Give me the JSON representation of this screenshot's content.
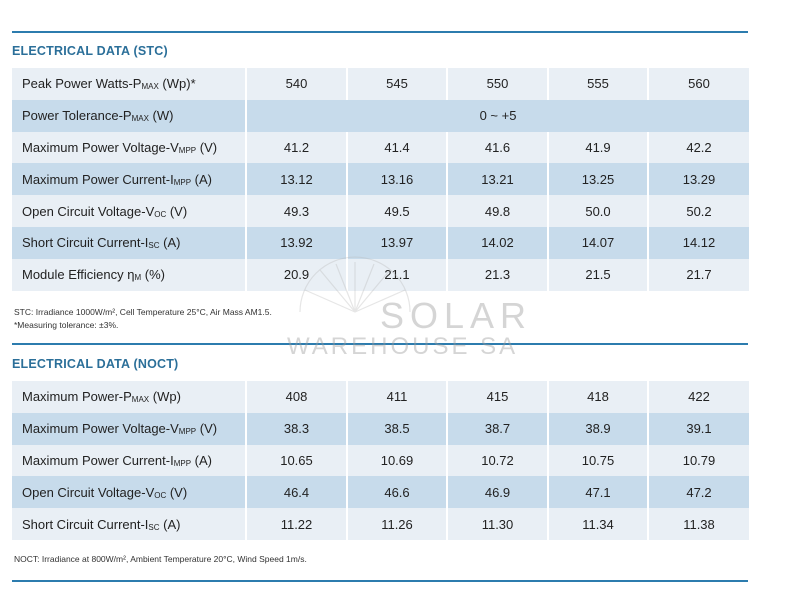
{
  "stc": {
    "title": "ELECTRICAL DATA (STC)",
    "rows": [
      {
        "label": "Peak Power Watts-P",
        "sub": "MAX",
        "unit": " (Wp)*",
        "values": [
          "540",
          "545",
          "550",
          "555",
          "560"
        ]
      },
      {
        "label": "Power Tolerance-P",
        "sub": "MAX",
        "unit": " (W)",
        "merged": "0 ~ +5"
      },
      {
        "label": "Maximum Power Voltage-V",
        "sub": "MPP",
        "unit": " (V)",
        "values": [
          "41.2",
          "41.4",
          "41.6",
          "41.9",
          "42.2"
        ]
      },
      {
        "label": "Maximum Power Current-I",
        "sub": "MPP",
        "unit": " (A)",
        "values": [
          "13.12",
          "13.16",
          "13.21",
          "13.25",
          "13.29"
        ]
      },
      {
        "label": "Open Circuit Voltage-V",
        "sub": "OC",
        "unit": " (V)",
        "values": [
          "49.3",
          "49.5",
          "49.8",
          "50.0",
          "50.2"
        ]
      },
      {
        "label": "Short Circuit Current-I",
        "sub": "SC",
        "unit": " (A)",
        "values": [
          "13.92",
          "13.97",
          "14.02",
          "14.07",
          "14.12"
        ]
      },
      {
        "label": "Module Efficiency  η",
        "sub": "m",
        "unit": " (%)",
        "values": [
          "20.9",
          "21.1",
          "21.3",
          "21.5",
          "21.7"
        ]
      }
    ],
    "note1": "STC: Irradiance 1000W/m², Cell Temperature 25°C, Air Mass AM1.5.",
    "note2": "*Measuring tolerance: ±3%."
  },
  "noct": {
    "title": "ELECTRICAL DATA (NOCT)",
    "rows": [
      {
        "label": "Maximum Power-P",
        "sub": "MAX",
        "unit": " (Wp)",
        "values": [
          "408",
          "411",
          "415",
          "418",
          "422"
        ]
      },
      {
        "label": "Maximum Power Voltage-V",
        "sub": "MPP",
        "unit": " (V)",
        "values": [
          "38.3",
          "38.5",
          "38.7",
          "38.9",
          "39.1"
        ]
      },
      {
        "label": "Maximum Power Current-I",
        "sub": "MPP",
        "unit": " (A)",
        "values": [
          "10.65",
          "10.69",
          "10.72",
          "10.75",
          "10.79"
        ]
      },
      {
        "label": "Open Circuit Voltage-V",
        "sub": "OC",
        "unit": " (V)",
        "values": [
          "46.4",
          "46.6",
          "46.9",
          "47.1",
          "47.2"
        ]
      },
      {
        "label": "Short Circuit Current-I",
        "sub": "SC",
        "unit": " (A)",
        "values": [
          "11.22",
          "11.26",
          "11.30",
          "11.34",
          "11.38"
        ]
      }
    ],
    "note1": "NOCT: Irradiance at 800W/m², Ambient Temperature 20°C, Wind Speed 1m/s."
  },
  "watermark": {
    "line1": "SOLAR",
    "line2": "WAREHOUSE SA",
    "logo_icon": "sun-icon",
    "color": "#9a9a9a"
  },
  "colors": {
    "accent": "#2c7cae",
    "row_light": "#e9eff5",
    "row_dark": "#c7dbeb"
  }
}
